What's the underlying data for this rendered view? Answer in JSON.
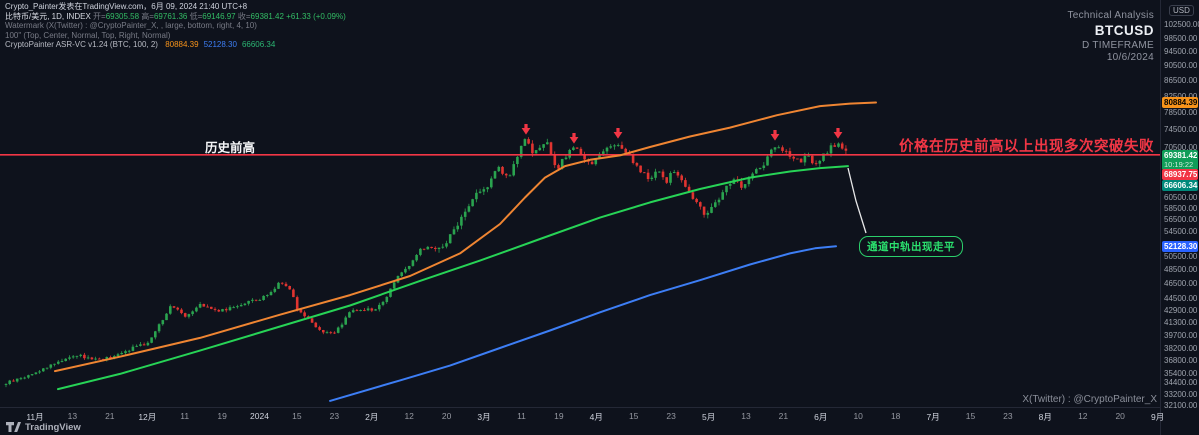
{
  "legend": {
    "published": "Crypto_Painter发表在TradingView.com，6月 09, 2024 21:40 UTC+8",
    "symbol": "比特币/美元, 1D, INDEX",
    "ohlc": [
      {
        "k": "开=",
        "v": "69305.58"
      },
      {
        "k": "高=",
        "v": "69761.36"
      },
      {
        "k": "低=",
        "v": "69146.97"
      },
      {
        "k": "收=",
        "v": "69381.42"
      },
      {
        "k": "",
        "v": "+61.33 (+0.09%)"
      }
    ],
    "watermark_setting": "Watermark (X(Twitter) : @CryptoPainter_X, , large, bottom, right, 4, 10)",
    "label_setting": "100\" (Top, Center, Normal, Top, Right, Normal)",
    "indicator": "CryptoPainter ASR-VC v1.24 (BTC, 100, 2)",
    "indicator_values": [
      {
        "v": "80884.39",
        "color": "#f7931a"
      },
      {
        "v": "52128.30",
        "color": "#3d7ef5"
      },
      {
        "v": "66606.34",
        "color": "#2bb673"
      }
    ]
  },
  "watermark_tr": {
    "line1": "Technical Analysis",
    "line2": "BTCUSD",
    "line3": "D TIMEFRAME",
    "line4": "10/6/2024"
  },
  "annotations": {
    "hline_label": "历史前高",
    "warning": "价格在历史前高以上出现多次突破失败",
    "note": "通道中轨出现走平",
    "twitter": "X(Twitter) : @CryptoPainter_X"
  },
  "price_axis": {
    "unit": "USD",
    "ticks": [
      "102500.00",
      "98500.00",
      "94500.00",
      "90500.00",
      "86500.00",
      "82500.00",
      "78500.00",
      "74500.00",
      "70500.00",
      "62500.00",
      "60500.00",
      "58500.00",
      "56500.00",
      "54500.00",
      "50500.00",
      "48500.00",
      "46500.00",
      "44500.00",
      "42900.00",
      "41300.00",
      "39700.00",
      "38200.00",
      "36800.00",
      "35400.00",
      "34400.00",
      "33200.00",
      "32100.00"
    ],
    "badges": [
      {
        "role": "upper-band",
        "text": "80884.39",
        "price": 80884.39,
        "color": "#f7931a",
        "text_color": "#000000"
      },
      {
        "role": "last-price",
        "text": "69381.42",
        "sub": "10:19:22",
        "price": 69381.42,
        "color": "#0f9d58",
        "text_color": "#ffffff"
      },
      {
        "role": "prev-high",
        "text": "68937.75",
        "price": 68937.75,
        "color": "#f23645",
        "text_color": "#ffffff"
      },
      {
        "role": "mid-band",
        "text": "66606.34",
        "price": 66606.34,
        "color": "#00897b",
        "text_color": "#ffffff"
      },
      {
        "role": "lower-band",
        "text": "52128.30",
        "price": 52128.3,
        "color": "#2962ff",
        "text_color": "#ffffff"
      }
    ]
  },
  "time_axis": {
    "labels": [
      "11月",
      "13",
      "21",
      "12月",
      "11",
      "19",
      "2024",
      "15",
      "23",
      "2月",
      "12",
      "20",
      "3月",
      "11",
      "19",
      "4月",
      "15",
      "23",
      "5月",
      "13",
      "21",
      "6月",
      "10",
      "18",
      "7月",
      "15",
      "23",
      "8月",
      "12",
      "20",
      "9月"
    ]
  },
  "footer": {
    "logo_text": "TradingView"
  },
  "chart_data": {
    "type": "candlestick",
    "symbol": "BTCUSD",
    "timeframe": "1D",
    "last_price": 69381.42,
    "prev_high_line": {
      "price": 68937.75,
      "label": "历史前高"
    },
    "colors": {
      "up": "#2aa34f",
      "down": "#e03430",
      "upper": "#ef8532",
      "mid": "#27d356",
      "lower": "#3d7ef5",
      "marker": "#f23645",
      "hline": "#f23645"
    },
    "price_path": [
      [
        6,
        34300
      ],
      [
        20,
        34800
      ],
      [
        35,
        35400
      ],
      [
        55,
        36500
      ],
      [
        75,
        37400
      ],
      [
        95,
        36900
      ],
      [
        115,
        37200
      ],
      [
        132,
        38200
      ],
      [
        147,
        38700
      ],
      [
        158,
        40800
      ],
      [
        172,
        43600
      ],
      [
        186,
        42100
      ],
      [
        200,
        43800
      ],
      [
        215,
        42800
      ],
      [
        230,
        43100
      ],
      [
        245,
        43900
      ],
      [
        260,
        44300
      ],
      [
        270,
        45200
      ],
      [
        280,
        46800
      ],
      [
        290,
        45800
      ],
      [
        298,
        42900
      ],
      [
        310,
        41600
      ],
      [
        322,
        40100
      ],
      [
        335,
        39900
      ],
      [
        350,
        42700
      ],
      [
        362,
        43100
      ],
      [
        374,
        42800
      ],
      [
        386,
        44500
      ],
      [
        398,
        47800
      ],
      [
        410,
        49100
      ],
      [
        420,
        51500
      ],
      [
        430,
        52100
      ],
      [
        442,
        51600
      ],
      [
        455,
        55100
      ],
      [
        468,
        58600
      ],
      [
        478,
        61900
      ],
      [
        488,
        62500
      ],
      [
        498,
        66300
      ],
      [
        508,
        64200
      ],
      [
        518,
        69000
      ],
      [
        526,
        72400
      ],
      [
        533,
        68700
      ],
      [
        541,
        70800
      ],
      [
        549,
        71200
      ],
      [
        556,
        65400
      ],
      [
        563,
        68100
      ],
      [
        570,
        69700
      ],
      [
        576,
        70500
      ],
      [
        583,
        68300
      ],
      [
        592,
        67100
      ],
      [
        601,
        69800
      ],
      [
        609,
        70600
      ],
      [
        618,
        71100
      ],
      [
        626,
        69700
      ],
      [
        634,
        67000
      ],
      [
        642,
        65200
      ],
      [
        650,
        64100
      ],
      [
        658,
        65700
      ],
      [
        666,
        63500
      ],
      [
        674,
        65800
      ],
      [
        682,
        63700
      ],
      [
        690,
        61000
      ],
      [
        697,
        59400
      ],
      [
        704,
        57600
      ],
      [
        711,
        58500
      ],
      [
        719,
        60100
      ],
      [
        727,
        63000
      ],
      [
        735,
        63900
      ],
      [
        743,
        62400
      ],
      [
        751,
        65000
      ],
      [
        759,
        66400
      ],
      [
        766,
        67300
      ],
      [
        773,
        71200
      ],
      [
        779,
        70000
      ],
      [
        786,
        69300
      ],
      [
        793,
        67800
      ],
      [
        801,
        67600
      ],
      [
        807,
        68600
      ],
      [
        813,
        67200
      ],
      [
        819,
        67900
      ],
      [
        825,
        69000
      ],
      [
        831,
        70600
      ],
      [
        837,
        71300
      ],
      [
        842,
        70700
      ],
      [
        846,
        69381
      ]
    ],
    "channel": {
      "upper_last": 80884.39,
      "mid_last": 66606.34,
      "lower_last": 52128.3,
      "upper": [
        [
          55,
          35600
        ],
        [
          120,
          37200
        ],
        [
          200,
          39400
        ],
        [
          280,
          42300
        ],
        [
          350,
          44900
        ],
        [
          410,
          47600
        ],
        [
          460,
          51000
        ],
        [
          500,
          55800
        ],
        [
          525,
          60500
        ],
        [
          545,
          64300
        ],
        [
          565,
          66600
        ],
        [
          590,
          67900
        ],
        [
          620,
          68800
        ],
        [
          650,
          70600
        ],
        [
          690,
          72900
        ],
        [
          730,
          74900
        ],
        [
          777,
          77800
        ],
        [
          820,
          80000
        ],
        [
          850,
          80600
        ],
        [
          876,
          80884
        ]
      ],
      "mid": [
        [
          58,
          33700
        ],
        [
          120,
          35300
        ],
        [
          200,
          37900
        ],
        [
          280,
          40800
        ],
        [
          350,
          43500
        ],
        [
          420,
          46900
        ],
        [
          480,
          49900
        ],
        [
          540,
          53300
        ],
        [
          600,
          56900
        ],
        [
          650,
          59600
        ],
        [
          700,
          62100
        ],
        [
          750,
          64300
        ],
        [
          790,
          65500
        ],
        [
          820,
          66200
        ],
        [
          848,
          66606
        ]
      ],
      "lower": [
        [
          330,
          32500
        ],
        [
          400,
          34600
        ],
        [
          450,
          36200
        ],
        [
          500,
          38200
        ],
        [
          550,
          40300
        ],
        [
          600,
          42600
        ],
        [
          650,
          44900
        ],
        [
          700,
          47000
        ],
        [
          750,
          49300
        ],
        [
          790,
          51000
        ],
        [
          815,
          51800
        ],
        [
          836,
          52128
        ]
      ]
    },
    "markers": {
      "type": "arrow-down",
      "points": [
        [
          526,
          124
        ],
        [
          574,
          133
        ],
        [
          618,
          128
        ],
        [
          775,
          130
        ],
        [
          838,
          128
        ]
      ]
    },
    "note_connector": [
      [
        848,
        168
      ],
      [
        856,
        201
      ],
      [
        866,
        233
      ]
    ]
  }
}
